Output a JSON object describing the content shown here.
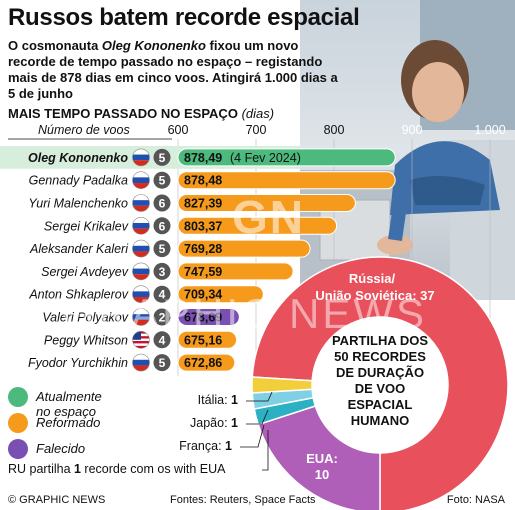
{
  "header": {
    "title": "Russos batem recorde espacial",
    "lede_parts": [
      {
        "text": "O cosmonauta ",
        "italic": false
      },
      {
        "text": "Oleg Kononenko",
        "italic": true
      },
      {
        "text": " fixou um novo recorde de tempo passado no espaço – registando mais de 878 dias em cinco voos. Atingirá 1.000 dias a 5 de junho",
        "italic": false
      }
    ],
    "section_title": "MAIS TEMPO PASSADO NO ESPAÇO",
    "section_unit": "(dias)"
  },
  "chart_data": [
    {
      "type": "bar",
      "orientation": "horizontal",
      "title": "MAIS TEMPO PASSADO NO ESPAÇO (dias)",
      "flights_header": "Número de voos",
      "xlim": [
        600,
        1000
      ],
      "xticks": [
        "600",
        "700",
        "800",
        "900",
        "1.000"
      ],
      "xtick_values": [
        600,
        700,
        800,
        900,
        1000
      ],
      "rows": [
        {
          "name": "Oleg Kononenko",
          "flag": "russia",
          "flights": "5",
          "value": 878.49,
          "label": "878,49",
          "note": "(4 Fev 2024)",
          "status": "active",
          "highlight": true
        },
        {
          "name": "Gennady Padalka",
          "flag": "russia",
          "flights": "5",
          "value": 878.48,
          "label": "878,48",
          "note": "",
          "status": "retired",
          "highlight": false
        },
        {
          "name": "Yuri Malenchenko",
          "flag": "russia",
          "flights": "6",
          "value": 827.39,
          "label": "827,39",
          "note": "",
          "status": "retired",
          "highlight": false
        },
        {
          "name": "Sergei Krikalev",
          "flag": "russia",
          "flights": "6",
          "value": 803.37,
          "label": "803,37",
          "note": "",
          "status": "retired",
          "highlight": false
        },
        {
          "name": "Aleksander Kaleri",
          "flag": "russia",
          "flights": "5",
          "value": 769.28,
          "label": "769,28",
          "note": "",
          "status": "retired",
          "highlight": false
        },
        {
          "name": "Sergei Avdeyev",
          "flag": "russia",
          "flights": "3",
          "value": 747.59,
          "label": "747,59",
          "note": "",
          "status": "retired",
          "highlight": false
        },
        {
          "name": "Anton Shkaplerov",
          "flag": "russia",
          "flights": "4",
          "value": 709.34,
          "label": "709,34",
          "note": "",
          "status": "retired",
          "highlight": false
        },
        {
          "name": "Valeri Polyakov",
          "flag": "russia",
          "flights": "2",
          "value": 678.69,
          "label": "678,69",
          "note": "",
          "status": "deceased",
          "highlight": false
        },
        {
          "name": "Peggy Whitson",
          "flag": "usa",
          "flights": "4",
          "value": 675.16,
          "label": "675,16",
          "note": "",
          "status": "retired",
          "highlight": false
        },
        {
          "name": "Fyodor Yurchikhin",
          "flag": "russia",
          "flights": "5",
          "value": 672.86,
          "label": "672,86",
          "note": "",
          "status": "retired",
          "highlight": false
        }
      ]
    },
    {
      "type": "pie",
      "donut": true,
      "center_label": [
        "PARTILHA DOS",
        "50 RECORDES",
        "DE DURAÇÃO",
        "DE VOO",
        "ESPACIAL",
        "HUMANO"
      ],
      "slices": [
        {
          "name": "Rússia/ União Soviética",
          "value": 37,
          "color": "#e8505b"
        },
        {
          "name": "EUA",
          "value": 10,
          "color": "#b05fb8"
        },
        {
          "name": "França",
          "value": 1,
          "color": "#2bb0c4"
        },
        {
          "name": "Japão",
          "value": 1,
          "color": "#7fd0e4"
        },
        {
          "name": "Itália",
          "value": 1,
          "color": "#f2cf3a"
        }
      ],
      "labels": {
        "russia_name": "Rússia/",
        "russia_name2": "União Soviética:",
        "russia_value": "37",
        "usa_name": "EUA:",
        "usa_value": "10",
        "italy": {
          "name": "Itália:",
          "value": "1"
        },
        "japan": {
          "name": "Japão:",
          "value": "1"
        },
        "france": {
          "name": "França:",
          "value": "1"
        }
      }
    }
  ],
  "legend": [
    {
      "key": "active",
      "label": "Atualmente no espaço",
      "color": "#4cba7d"
    },
    {
      "key": "retired",
      "label": "Reformado",
      "color": "#f59a1b"
    },
    {
      "key": "deceased",
      "label": "Falecido",
      "color": "#7a4fb3"
    }
  ],
  "note": {
    "pre": "RU partilha ",
    "num": "1",
    "post": " recorde com os with EUA"
  },
  "footer": {
    "left": "© GRAPHIC NEWS",
    "center": "Fontes: Reuters, Space Facts",
    "right": "Foto: NASA"
  },
  "watermark": {
    "top": "GN",
    "bottom": "GRAPHIC NEWS"
  },
  "colors": {
    "active": "#4cba7d",
    "retired": "#f59a1b",
    "deceased": "#7a4fb3",
    "flight_badge": "#555555",
    "highlight_row": "#d8eedd"
  }
}
